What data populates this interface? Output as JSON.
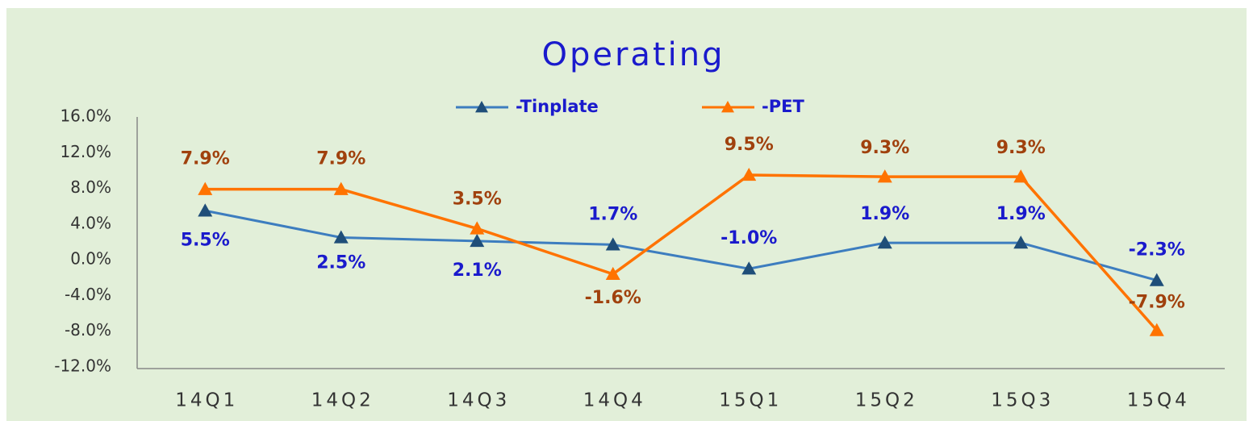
{
  "chart_data": {
    "type": "line",
    "title": "Operating",
    "categories": [
      "14Q1",
      "14Q2",
      "14Q3",
      "14Q4",
      "15Q1",
      "15Q2",
      "15Q3",
      "15Q4"
    ],
    "series": [
      {
        "name": "-Tinplate",
        "color": "#3d7dbf",
        "marker_color": "#1f4e79",
        "label_color": "#1a1acc",
        "values": [
          5.5,
          2.5,
          2.1,
          1.7,
          -1.0,
          1.9,
          1.9,
          -2.3
        ],
        "value_labels": [
          "5.5%",
          "2.5%",
          "2.1%",
          "1.7%",
          "-1.0%",
          "1.9%",
          "1.9%",
          "-2.3%"
        ]
      },
      {
        "name": "-PET",
        "color": "#ff7300",
        "marker_color": "#ff7300",
        "label_color": "#a0410d",
        "values": [
          7.9,
          7.9,
          3.5,
          -1.6,
          9.5,
          9.3,
          9.3,
          -7.9
        ],
        "value_labels": [
          "7.9%",
          "7.9%",
          "3.5%",
          "-1.6%",
          "9.5%",
          "9.3%",
          "9.3%",
          "-7.9%"
        ]
      }
    ],
    "ylim": [
      -12,
      16
    ],
    "yticks": [
      {
        "value": -12,
        "label": "-12.0%"
      },
      {
        "value": -8,
        "label": "-8.0%"
      },
      {
        "value": -4,
        "label": "-4.0%"
      },
      {
        "value": 0,
        "label": "0.0%"
      },
      {
        "value": 4,
        "label": "4.0%"
      },
      {
        "value": 8,
        "label": "8.0%"
      },
      {
        "value": 12,
        "label": "12.0%"
      },
      {
        "value": 16,
        "label": "16.0%"
      }
    ],
    "legend": "top",
    "grid": false
  }
}
